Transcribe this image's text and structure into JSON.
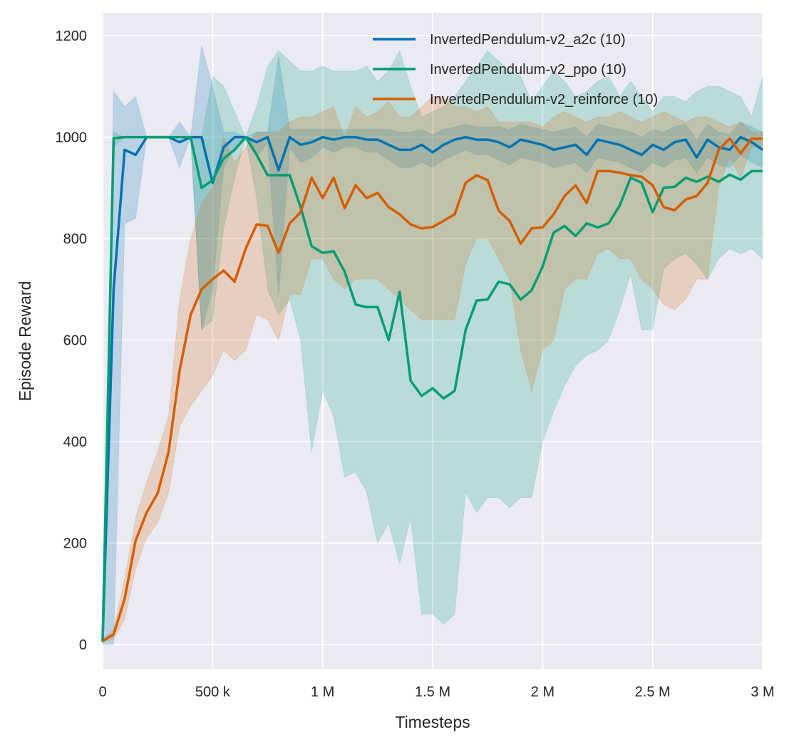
{
  "chart_data": {
    "type": "line",
    "title": "",
    "xlabel": "Timesteps",
    "ylabel": "Episode Reward",
    "xlim": [
      0,
      3000000
    ],
    "ylim": [
      -49,
      1245
    ],
    "grid": true,
    "background": "#eaeaf2",
    "legend_placement": "top-right",
    "xticks": [
      {
        "value": 0,
        "label": "0"
      },
      {
        "value": 500000,
        "label": "500 k"
      },
      {
        "value": 1000000,
        "label": "1 M"
      },
      {
        "value": 1500000,
        "label": "1.5 M"
      },
      {
        "value": 2000000,
        "label": "2 M"
      },
      {
        "value": 2500000,
        "label": "2.5 M"
      },
      {
        "value": 3000000,
        "label": "3 M"
      }
    ],
    "yticks": [
      {
        "value": 0,
        "label": "0"
      },
      {
        "value": 200,
        "label": "200"
      },
      {
        "value": 400,
        "label": "400"
      },
      {
        "value": 600,
        "label": "600"
      },
      {
        "value": 800,
        "label": "800"
      },
      {
        "value": 1000,
        "label": "1000"
      },
      {
        "value": 1200,
        "label": "1200"
      }
    ],
    "x": [
      0,
      50000,
      100000,
      150000,
      200000,
      250000,
      300000,
      350000,
      400000,
      450000,
      500000,
      550000,
      600000,
      650000,
      700000,
      750000,
      800000,
      850000,
      900000,
      950000,
      1000000,
      1050000,
      1100000,
      1150000,
      1200000,
      1250000,
      1300000,
      1350000,
      1400000,
      1450000,
      1500000,
      1550000,
      1600000,
      1650000,
      1700000,
      1750000,
      1800000,
      1850000,
      1900000,
      1950000,
      2000000,
      2050000,
      2100000,
      2150000,
      2200000,
      2250000,
      2300000,
      2350000,
      2400000,
      2450000,
      2500000,
      2550000,
      2600000,
      2650000,
      2700000,
      2750000,
      2800000,
      2850000,
      2900000,
      2950000,
      3000000
    ],
    "series": [
      {
        "name": "InvertedPendulum-v2_a2c (10)",
        "color": "#0173b2",
        "values": [
          10,
          700,
          975,
          965,
          1000,
          1000,
          1000,
          990,
          1000,
          1000,
          910,
          980,
          1000,
          1000,
          990,
          1000,
          935,
          1000,
          985,
          990,
          1000,
          995,
          1000,
          1000,
          995,
          995,
          985,
          975,
          975,
          985,
          970,
          985,
          995,
          1000,
          995,
          995,
          990,
          980,
          995,
          990,
          985,
          975,
          980,
          985,
          965,
          995,
          990,
          985,
          975,
          965,
          985,
          975,
          990,
          995,
          960,
          995,
          980,
          975,
          1000,
          990,
          975
        ],
        "lower": [
          0,
          0,
          830,
          840,
          1000,
          1000,
          1000,
          940,
          1000,
          620,
          700,
          940,
          980,
          1000,
          960,
          990,
          690,
          980,
          950,
          960,
          980,
          970,
          980,
          980,
          970,
          970,
          955,
          940,
          940,
          950,
          940,
          955,
          965,
          975,
          965,
          965,
          955,
          945,
          960,
          955,
          950,
          940,
          945,
          950,
          930,
          960,
          955,
          950,
          940,
          930,
          950,
          940,
          955,
          960,
          930,
          960,
          945,
          940,
          965,
          950,
          940
        ],
        "upper": [
          10,
          1090,
          1060,
          1080,
          1000,
          1000,
          1000,
          1030,
          1000,
          1180,
          1100,
          1010,
          1010,
          1000,
          1010,
          1010,
          1160,
          1015,
          1015,
          1015,
          1015,
          1015,
          1015,
          1015,
          1015,
          1015,
          1015,
          1010,
          1010,
          1015,
          1005,
          1015,
          1020,
          1025,
          1020,
          1020,
          1020,
          1015,
          1025,
          1020,
          1015,
          1010,
          1015,
          1020,
          1000,
          1025,
          1020,
          1015,
          1010,
          1000,
          1015,
          1010,
          1020,
          1025,
          995,
          1025,
          1010,
          1005,
          1030,
          1020,
          1010
        ]
      },
      {
        "name": "InvertedPendulum-v2_ppo (10)",
        "color": "#029e73",
        "values": [
          5,
          998,
          1000,
          1000,
          1000,
          1000,
          1000,
          1000,
          1000,
          900,
          915,
          958,
          975,
          1000,
          965,
          925,
          925,
          925,
          862,
          785,
          772,
          775,
          735,
          670,
          665,
          665,
          600,
          695,
          520,
          490,
          505,
          485,
          500,
          620,
          678,
          680,
          715,
          710,
          680,
          698,
          745,
          812,
          825,
          805,
          830,
          822,
          830,
          865,
          920,
          910,
          852,
          900,
          902,
          920,
          912,
          922,
          912,
          926,
          916,
          933,
          933
        ],
        "lower": [
          0,
          980,
          1000,
          1000,
          1000,
          1000,
          1000,
          1000,
          1000,
          620,
          640,
          820,
          920,
          1000,
          880,
          700,
          650,
          680,
          600,
          380,
          500,
          450,
          330,
          340,
          300,
          200,
          240,
          160,
          250,
          60,
          60,
          40,
          60,
          300,
          260,
          290,
          290,
          270,
          290,
          290,
          400,
          460,
          510,
          550,
          570,
          580,
          600,
          660,
          730,
          620,
          620,
          740,
          760,
          770,
          750,
          720,
          760,
          780,
          770,
          780,
          760
        ],
        "upper": [
          10,
          1010,
          1000,
          1000,
          1000,
          1000,
          1000,
          1000,
          1000,
          1000,
          1120,
          1100,
          1050,
          1000,
          1060,
          1140,
          1170,
          1150,
          1130,
          1130,
          1140,
          1130,
          1130,
          1130,
          1140,
          1110,
          1130,
          1170,
          1100,
          1040,
          1050,
          1060,
          1080,
          1110,
          1140,
          1170,
          1150,
          1130,
          1120,
          1070,
          1100,
          1130,
          1110,
          1080,
          1090,
          1110,
          1120,
          1080,
          1110,
          1080,
          1050,
          1080,
          1080,
          1070,
          1090,
          1100,
          1100,
          1090,
          1080,
          1040,
          1120
        ]
      },
      {
        "name": "InvertedPendulum-v2_reinforce (10)",
        "color": "#d55e00",
        "values": [
          7,
          20,
          90,
          205,
          260,
          298,
          380,
          540,
          650,
          700,
          720,
          737,
          715,
          780,
          828,
          825,
          772,
          830,
          852,
          920,
          880,
          920,
          860,
          905,
          880,
          890,
          862,
          848,
          828,
          820,
          823,
          835,
          848,
          910,
          925,
          915,
          855,
          835,
          790,
          820,
          822,
          848,
          884,
          905,
          870,
          933,
          933,
          930,
          925,
          922,
          905,
          862,
          856,
          877,
          884,
          910,
          975,
          997,
          968,
          997,
          997
        ],
        "lower": [
          5,
          10,
          50,
          150,
          210,
          240,
          300,
          430,
          470,
          500,
          530,
          580,
          560,
          580,
          650,
          640,
          600,
          690,
          690,
          760,
          760,
          720,
          700,
          720,
          720,
          720,
          700,
          680,
          660,
          640,
          640,
          640,
          640,
          750,
          800,
          800,
          760,
          720,
          580,
          500,
          580,
          600,
          700,
          720,
          720,
          770,
          780,
          760,
          760,
          720,
          700,
          670,
          660,
          680,
          720,
          720,
          900,
          960,
          920,
          980,
          980
        ],
        "upper": [
          10,
          30,
          130,
          250,
          320,
          380,
          450,
          680,
          800,
          870,
          900,
          1000,
          950,
          980,
          1010,
          1010,
          1010,
          1030,
          1040,
          1040,
          1050,
          1060,
          1000,
          1060,
          1040,
          1050,
          1070,
          1040,
          1040,
          1060,
          1080,
          1080,
          1060,
          1060,
          1050,
          1060,
          1030,
          1030,
          1030,
          1030,
          1020,
          1040,
          1050,
          1040,
          1030,
          1040,
          1040,
          1050,
          1040,
          1030,
          1040,
          1050,
          1040,
          1030,
          1040,
          1040,
          1030,
          1020,
          1030,
          1010,
          1010
        ]
      }
    ]
  }
}
